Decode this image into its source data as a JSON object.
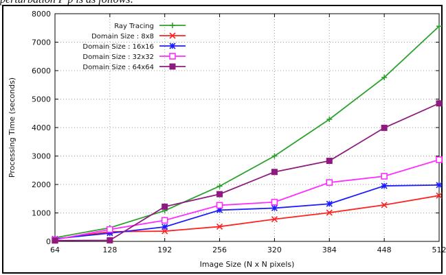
{
  "caption": "perturbation P p is as follows:",
  "chart_data": {
    "type": "line",
    "title": "",
    "xlabel": "Image Size (N x N pixels)",
    "ylabel": "Processing Time (seconds)",
    "x": [
      64,
      128,
      192,
      256,
      320,
      384,
      448,
      512
    ],
    "xlim": [
      64,
      512
    ],
    "ylim": [
      0,
      8000
    ],
    "xticks": [
      64,
      128,
      192,
      256,
      320,
      384,
      448,
      512
    ],
    "yticks": [
      0,
      1000,
      2000,
      3000,
      4000,
      5000,
      6000,
      7000,
      8000
    ],
    "grid": true,
    "legend_position": "top-left",
    "series": [
      {
        "name": "Ray Tracing",
        "color": "#2ca02c",
        "marker": "plus",
        "values": [
          130,
          480,
          1080,
          1940,
          3000,
          4290,
          5760,
          7560
        ]
      },
      {
        "name": "Domain Size : 8x8",
        "color": "#ff2020",
        "marker": "cross",
        "values": [
          80,
          340,
          360,
          520,
          780,
          1010,
          1280,
          1610
        ]
      },
      {
        "name": "Domain Size : 16x16",
        "color": "#1c1cff",
        "marker": "star",
        "values": [
          90,
          290,
          510,
          1100,
          1170,
          1320,
          1950,
          1980
        ]
      },
      {
        "name": "Domain Size : 32x32",
        "color": "#ff2cff",
        "marker": "square",
        "values": [
          60,
          420,
          740,
          1270,
          1380,
          2070,
          2290,
          2870
        ]
      },
      {
        "name": "Domain Size : 64x64",
        "color": "#8e1a80",
        "marker": "filled-square",
        "values": [
          30,
          40,
          1220,
          1660,
          2440,
          2830,
          3990,
          4850
        ]
      }
    ]
  }
}
